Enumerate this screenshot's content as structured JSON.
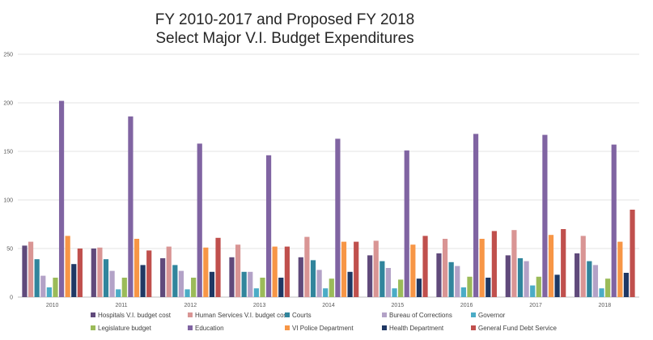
{
  "chart_data": {
    "type": "bar",
    "title": [
      "FY 2010-2017 and Proposed FY 2018",
      "Select Major V.I. Budget Expenditures"
    ],
    "xlabel": "",
    "ylabel": "",
    "ylim": [
      0,
      250
    ],
    "yticks": [
      0,
      50,
      100,
      150,
      200,
      250
    ],
    "grid": true,
    "legend_position": "bottom",
    "categories": [
      "2010",
      "2011",
      "2012",
      "2013",
      "2014",
      "2015",
      "2016",
      "2017",
      "2018"
    ],
    "series": [
      {
        "name": "Hospitals V.I. budget cost",
        "color": "#604A7B",
        "values": [
          53,
          50,
          40,
          41,
          41,
          43,
          45,
          43,
          45
        ]
      },
      {
        "name": "Human Services V.I. budget cost",
        "color": "#D99594",
        "values": [
          57,
          51,
          52,
          54,
          62,
          58,
          60,
          69,
          63
        ]
      },
      {
        "name": "Courts",
        "color": "#31859C",
        "values": [
          39,
          39,
          33,
          26,
          38,
          37,
          36,
          40,
          37
        ]
      },
      {
        "name": "Bureau of Corrections",
        "color": "#B3A2C7",
        "values": [
          22,
          27,
          27,
          26,
          28,
          30,
          32,
          37,
          33
        ]
      },
      {
        "name": "Governor",
        "color": "#4BACC6",
        "values": [
          10,
          8,
          8,
          9,
          9,
          9,
          10,
          12,
          9
        ]
      },
      {
        "name": "Legislature budget",
        "color": "#9BBB59",
        "values": [
          20,
          20,
          20,
          20,
          19,
          18,
          21,
          21,
          19
        ]
      },
      {
        "name": "Education",
        "color": "#8064A2",
        "values": [
          202,
          186,
          158,
          146,
          163,
          151,
          168,
          167,
          157
        ]
      },
      {
        "name": "VI Police Department",
        "color": "#F79646",
        "values": [
          63,
          60,
          51,
          52,
          57,
          54,
          60,
          64,
          57
        ]
      },
      {
        "name": "Health Department",
        "color": "#1F3864",
        "values": [
          34,
          33,
          26,
          20,
          26,
          19,
          20,
          23,
          25
        ]
      },
      {
        "name": "General Fund Debt Service",
        "color": "#C0504D",
        "values": [
          50,
          48,
          61,
          52,
          57,
          63,
          68,
          70,
          90
        ]
      }
    ]
  }
}
